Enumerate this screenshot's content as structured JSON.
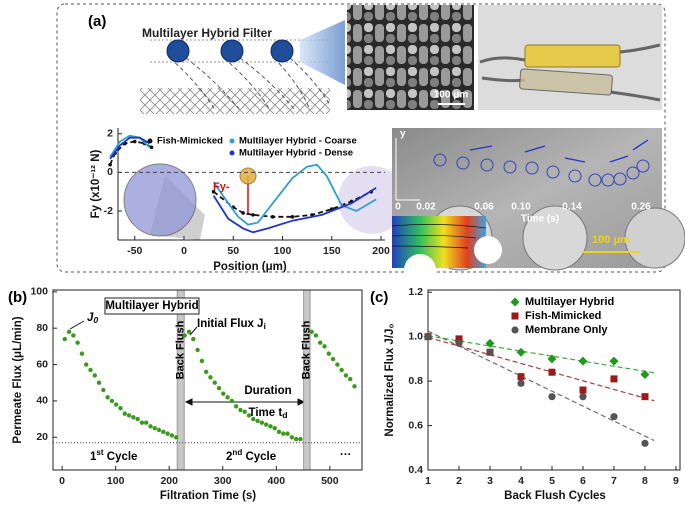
{
  "figure": {
    "panel_labels": [
      "(a)",
      "(b)",
      "(c)"
    ],
    "illustration_title": "Multilayer Hybrid Filter",
    "sem_scale": "100 μm",
    "micrograph": {
      "axis": "y",
      "times": [
        "0",
        "0.02",
        "0.06",
        "0.10",
        "0.14",
        "0.26"
      ],
      "time_label": "Time (s)",
      "scale": "100 μm"
    }
  },
  "chart_data": [
    {
      "type": "line",
      "xlabel": "Position (μm)",
      "ylabel": "Fy (x10⁻¹² N)",
      "xlim": [
        -67,
        204
      ],
      "xticks": [
        -50,
        0,
        50,
        100,
        150,
        200
      ],
      "ylim": [
        -3.5,
        2.3
      ],
      "yticks": [
        -2,
        0,
        2
      ],
      "hline": 0,
      "annotation": "Fy-",
      "series": [
        {
          "name": "Fish-Mimicked",
          "color": "#111111",
          "style": "dashed",
          "markers": true,
          "x": [
            -75,
            -70,
            -60,
            -50,
            -40,
            -33,
            null,
            30,
            50,
            60,
            70,
            90,
            110,
            130,
            150,
            170,
            190
          ],
          "values": [
            0.4,
            1.0,
            1.5,
            1.6,
            1.5,
            1.3,
            null,
            -1.0,
            -1.8,
            -2.1,
            -2.2,
            -2.3,
            -2.3,
            -2.2,
            -1.9,
            -1.5,
            -1.0
          ]
        },
        {
          "name": "Multilayer Hybrid - Coarse",
          "color": "#2f9fd0",
          "style": "solid",
          "x": [
            -75,
            -65,
            -55,
            -45,
            -35,
            null,
            30,
            45,
            55,
            65,
            75,
            90,
            110,
            125,
            135,
            145,
            160,
            175,
            195
          ],
          "values": [
            0.8,
            1.6,
            1.9,
            1.8,
            1.3,
            null,
            -0.5,
            -1.6,
            -2.3,
            -2.7,
            -2.6,
            -1.6,
            -0.3,
            0.3,
            0.4,
            -0.2,
            -1.7,
            -2.0,
            -1.4
          ]
        },
        {
          "name": "Multilayer Hybrid - Dense",
          "color": "#2233cc",
          "style": "solid",
          "x": [
            -75,
            -65,
            -55,
            -45,
            -35,
            null,
            30,
            45,
            60,
            70,
            85,
            110,
            140,
            170,
            195
          ],
          "values": [
            0.7,
            1.4,
            1.8,
            1.8,
            1.5,
            null,
            -1.2,
            -2.4,
            -2.9,
            -3.1,
            -2.9,
            -2.5,
            -2.2,
            -1.6,
            -0.8
          ]
        }
      ]
    },
    {
      "type": "scatter",
      "title": "Multilayer Hybrid",
      "xlabel": "Filtration Time (s)",
      "ylabel": "Permeate Flux (μL/min)",
      "xlim": [
        -17,
        560
      ],
      "xticks": [
        0,
        100,
        200,
        300,
        400,
        500
      ],
      "ylim": [
        2,
        101
      ],
      "yticks": [
        20,
        40,
        60,
        80,
        100
      ],
      "color": "#3a9a1a",
      "hline": 17,
      "bands": [
        {
          "label": "Back Flush",
          "range": [
            215,
            228
          ]
        },
        {
          "label": "Back Flush",
          "range": [
            451,
            463
          ]
        }
      ],
      "annotations": [
        {
          "text": "J",
          "sub": "0"
        },
        {
          "text": "Initial Flux J",
          "sub": "i"
        },
        {
          "text": "Duration"
        },
        {
          "text": "Time t",
          "sub": "d"
        },
        {
          "text": "1",
          "sup": "st",
          "after": " Cycle"
        },
        {
          "text": "2",
          "sup": "nd",
          "after": " Cycle"
        },
        {
          "text": "···"
        }
      ],
      "x": [
        5,
        13,
        21,
        29,
        37,
        45,
        53,
        61,
        69,
        77,
        85,
        93,
        101,
        109,
        117,
        125,
        133,
        141,
        149,
        157,
        165,
        173,
        181,
        189,
        197,
        205,
        213,
        229,
        237,
        245,
        253,
        261,
        269,
        277,
        285,
        293,
        301,
        309,
        317,
        325,
        333,
        341,
        349,
        357,
        365,
        373,
        381,
        389,
        397,
        405,
        413,
        421,
        429,
        437,
        445,
        466,
        474,
        482,
        490,
        498,
        506,
        514,
        522,
        530,
        538,
        546
      ],
      "values": [
        74,
        78,
        76,
        72,
        66,
        60,
        57,
        54,
        50,
        46,
        42,
        40,
        38,
        36,
        33,
        32,
        31,
        30,
        28,
        28,
        26,
        25,
        24,
        23,
        22,
        21,
        20,
        76,
        78,
        74,
        68,
        62,
        56,
        53,
        50,
        47,
        44,
        42,
        40,
        37,
        35,
        34,
        32,
        30,
        29,
        28,
        27,
        26,
        25,
        23,
        22,
        22,
        20,
        19,
        19,
        78,
        76,
        72,
        70,
        66,
        63,
        60,
        57,
        54,
        52,
        48
      ]
    },
    {
      "type": "scatter",
      "xlabel": "Back Flush Cycles",
      "ylabel": "Normalized Flux J/J₀",
      "xlim": [
        1,
        9.13
      ],
      "xticks": [
        1,
        2,
        3,
        4,
        5,
        6,
        7,
        8,
        9
      ],
      "ylim": [
        0.4,
        1.21
      ],
      "yticks": [
        0.4,
        0.6,
        0.8,
        1.0,
        1.2
      ],
      "fit": true,
      "legend": "top-right",
      "x": [
        1,
        2,
        3,
        4,
        5,
        6,
        7,
        8
      ],
      "series": [
        {
          "name": "Multilayer Hybrid",
          "color": "#1f9a1f",
          "marker": "diamond",
          "values": [
            1.0,
            0.98,
            0.97,
            0.93,
            0.9,
            0.89,
            0.89,
            0.83
          ]
        },
        {
          "name": "Fish-Mimicked",
          "color": "#9b1b1b",
          "marker": "square",
          "values": [
            1.0,
            0.99,
            0.93,
            0.82,
            0.84,
            0.76,
            0.81,
            0.73
          ]
        },
        {
          "name": "Membrane Only",
          "color": "#555555",
          "marker": "circle",
          "values": [
            1.0,
            0.97,
            0.93,
            0.79,
            0.73,
            0.73,
            0.64,
            0.52
          ]
        }
      ]
    }
  ]
}
